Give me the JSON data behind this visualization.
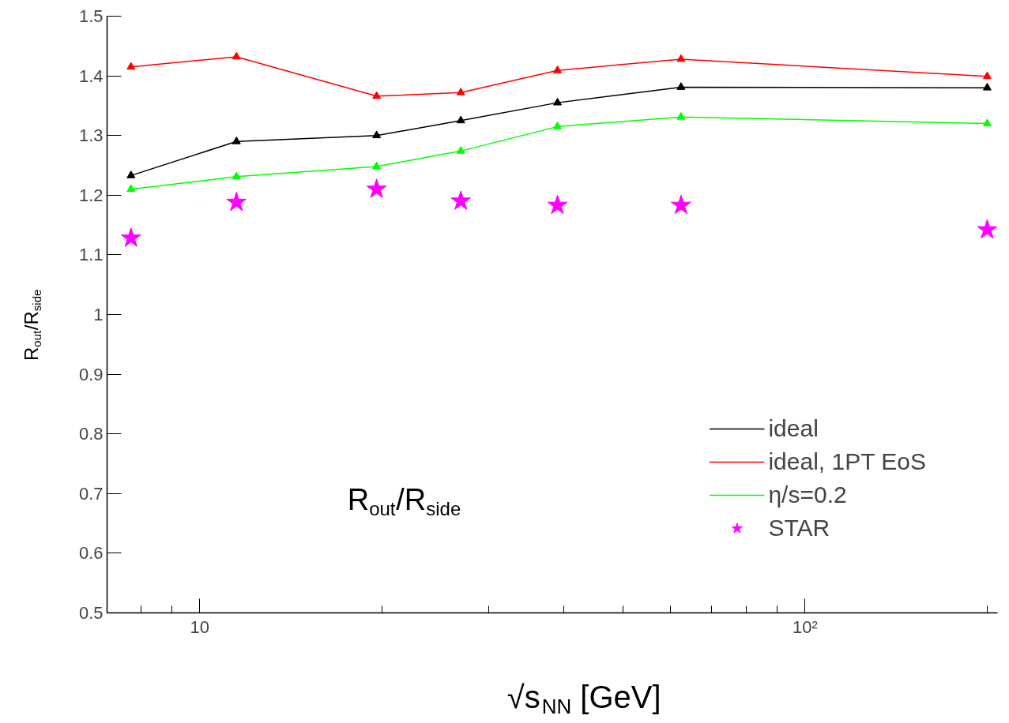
{
  "chart_data": {
    "type": "line",
    "xlabel": "√s$_{NN}$ [GeV]",
    "ylabel": "R$_{out}$/R$_{side}$",
    "annotations": [
      "R$_{out}$/R$_{side}$"
    ],
    "x": [
      7.7,
      11.5,
      19.6,
      27,
      39,
      62.4,
      200
    ],
    "series": [
      {
        "name": "ideal",
        "color": "#000000",
        "marker": "triangle",
        "values": [
          1.233,
          1.29,
          1.3,
          1.325,
          1.355,
          1.381,
          1.38
        ]
      },
      {
        "name": "ideal, 1PT EoS",
        "color": "#ff0000",
        "marker": "triangle",
        "values": [
          1.415,
          1.432,
          1.366,
          1.372,
          1.409,
          1.428,
          1.399
        ]
      },
      {
        "name": "η/s=0.2",
        "color": "#00ff00",
        "marker": "triangle",
        "values": [
          1.21,
          1.231,
          1.248,
          1.274,
          1.315,
          1.331,
          1.32
        ]
      },
      {
        "name": "STAR",
        "type": "scatter",
        "color": "#ff00ff",
        "marker": "star",
        "values": [
          1.128,
          1.188,
          1.21,
          1.19,
          1.183,
          1.183,
          1.142
        ]
      }
    ],
    "log": "x",
    "xlim": [
      7.03,
      208
    ],
    "ylim": [
      0.5,
      1.5
    ],
    "xticks": [
      {
        "value": 8,
        "label": null
      },
      {
        "value": 9,
        "label": null
      },
      10,
      {
        "value": 20,
        "label": null
      },
      {
        "value": 30,
        "label": null
      },
      {
        "value": 40,
        "label": null
      },
      {
        "value": 50,
        "label": null
      },
      {
        "value": 60,
        "label": null
      },
      {
        "value": 70,
        "label": null
      },
      {
        "value": 80,
        "label": null
      },
      {
        "value": 90,
        "label": null
      },
      {
        "value": 100,
        "label": "10²"
      },
      {
        "value": 200,
        "label": null
      }
    ],
    "yticks": [
      0.5,
      0.6,
      0.7,
      0.8,
      0.9,
      1,
      1.1,
      1.2,
      1.3,
      1.4,
      1.5
    ],
    "grid": false,
    "legend": "bottom right"
  }
}
